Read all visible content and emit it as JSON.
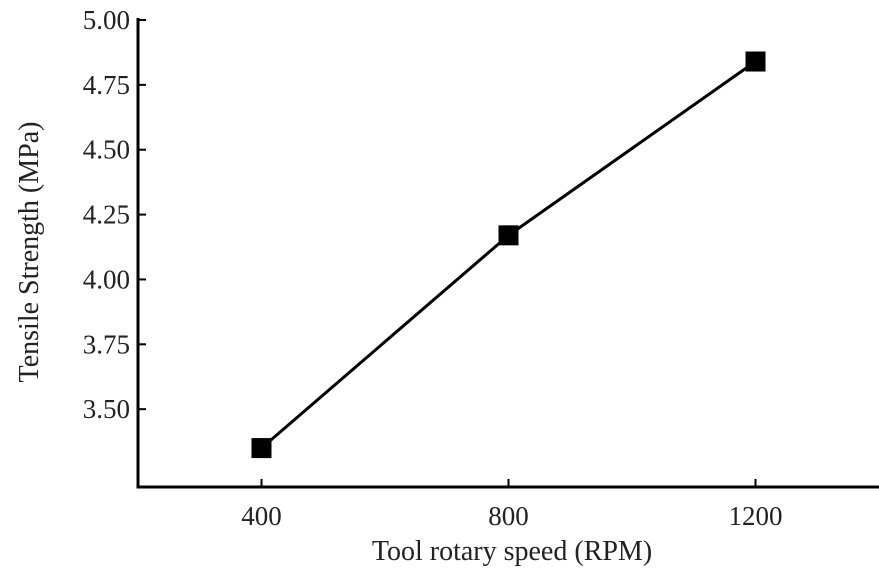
{
  "chart_data": {
    "type": "line",
    "title": "",
    "xlabel": "Tool rotary speed (RPM)",
    "ylabel": "Tensile Strength (MPa)",
    "x": [
      400,
      800,
      1200
    ],
    "series": [
      {
        "values": [
          3.35,
          4.17,
          4.84
        ]
      }
    ],
    "xlim": [
      200,
      1400
    ],
    "ylim": [
      3.2,
      5.0
    ],
    "xticks": [
      400,
      800,
      1200
    ],
    "xtick_labels": [
      "400",
      "800",
      "1200"
    ],
    "yticks": [
      3.5,
      3.75,
      4.0,
      4.25,
      4.5,
      4.75,
      5.0
    ],
    "ytick_labels": [
      "3.50",
      "3.75",
      "4.00",
      "4.25",
      "4.50",
      "4.75",
      "5.00"
    ],
    "grid": false,
    "legend": "none",
    "marker": "square",
    "line_color": "#000000",
    "marker_color": "#000000"
  }
}
